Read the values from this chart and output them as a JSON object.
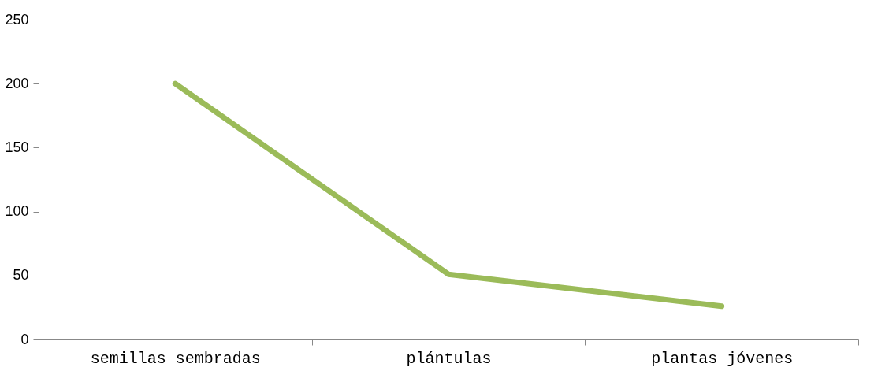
{
  "chart_data": {
    "type": "line",
    "categories": [
      "semillas sembradas",
      "plántulas",
      "plantas jóvenes"
    ],
    "values": [
      200,
      51,
      26
    ],
    "color": "#9bbb59",
    "ylim": [
      0,
      250
    ],
    "yticks": [
      0,
      50,
      100,
      150,
      200,
      250
    ],
    "grid": false,
    "marker": "none",
    "line_style": "solid"
  }
}
